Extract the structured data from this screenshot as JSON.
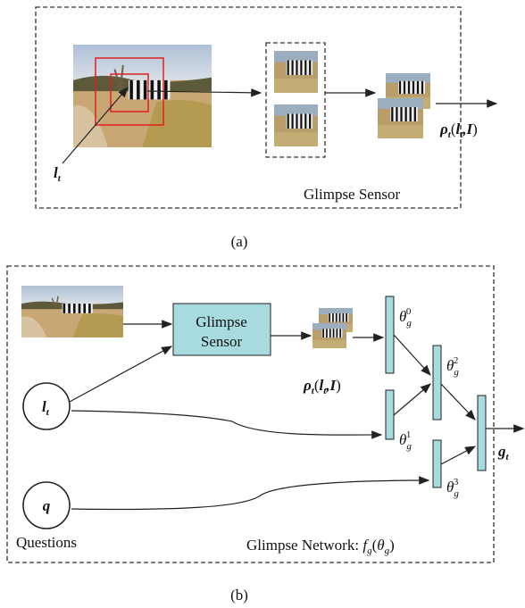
{
  "panel_a": {
    "caption": "(a)",
    "label": "Glimpse Sensor",
    "location": {
      "base": "l",
      "sub": "t"
    },
    "output": {
      "symbol": "ρ",
      "sub": "t",
      "open": "(",
      "arg1": "l",
      "arg1_sub": "t",
      "sep": ",",
      "arg2": "I",
      "close": ")"
    }
  },
  "panel_b": {
    "caption": "(b)",
    "sensor_box": [
      "Glimpse",
      "Sensor"
    ],
    "location": {
      "base": "l",
      "sub": "t"
    },
    "question": "q",
    "questions_label": "Questions",
    "output": {
      "symbol": "ρ",
      "sub": "t",
      "open": "(",
      "arg1": "l",
      "arg1_sub": "t",
      "sep": ",",
      "arg2": "I",
      "close": ")"
    },
    "thetas": [
      {
        "base": "θ",
        "sub": "g",
        "sup": "0"
      },
      {
        "base": "θ",
        "sub": "g",
        "sup": "1"
      },
      {
        "base": "θ",
        "sub": "g",
        "sup": "2"
      },
      {
        "base": "θ",
        "sub": "g",
        "sup": "3"
      }
    ],
    "result": {
      "base": "g",
      "sub": "t"
    },
    "network_label": {
      "text": "Glimpse Network: ",
      "f": "f",
      "f_sub": "g",
      "open": "(",
      "theta": "θ",
      "theta_sub": "g",
      "close": ")"
    }
  }
}
